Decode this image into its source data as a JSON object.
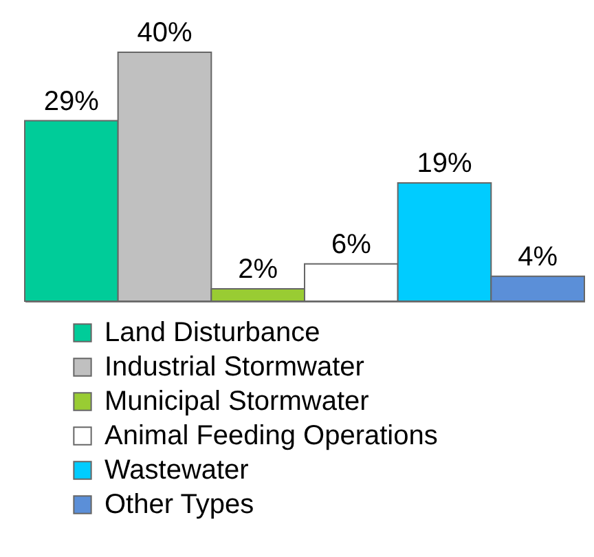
{
  "chart_data": {
    "type": "bar",
    "stacked": true,
    "categories": [
      null,
      null,
      null,
      null,
      null,
      null
    ],
    "series": [
      {
        "name": "Land Disturbance",
        "color": "#00cc99",
        "values": [
          29,
          null,
          null,
          null,
          null,
          null
        ],
        "value_labels": [
          "29%",
          null,
          null,
          null,
          null,
          null
        ]
      },
      {
        "name": "Industrial Stormwater",
        "color": "#c0c0c0",
        "values": [
          null,
          40,
          null,
          null,
          null,
          null
        ],
        "value_labels": [
          null,
          "40%",
          null,
          null,
          null,
          null
        ]
      },
      {
        "name": "Municipal Stormwater",
        "color": "#99cc33",
        "values": [
          null,
          null,
          2,
          null,
          null,
          null
        ],
        "value_labels": [
          null,
          null,
          "2%",
          null,
          null,
          null
        ]
      },
      {
        "name": "Animal Feeding Operations",
        "color": "#ffffff",
        "values": [
          null,
          null,
          null,
          6,
          null,
          null
        ],
        "value_labels": [
          null,
          null,
          null,
          "6%",
          null,
          null
        ]
      },
      {
        "name": "Wastewater",
        "color": "#00ccff",
        "values": [
          null,
          null,
          null,
          null,
          19,
          null
        ],
        "value_labels": [
          null,
          null,
          null,
          null,
          "19%",
          null
        ]
      },
      {
        "name": "Other Types",
        "color": "#5b8fd8",
        "values": [
          null,
          null,
          null,
          null,
          null,
          4
        ],
        "value_labels": [
          null,
          null,
          null,
          null,
          null,
          "4%"
        ]
      }
    ],
    "legend": "bottom",
    "tick_labels": false
  }
}
